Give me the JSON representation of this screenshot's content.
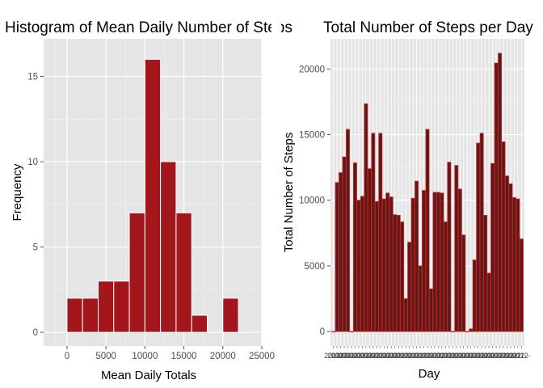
{
  "chart_data": [
    {
      "type": "bar",
      "variant": "histogram",
      "title": "Histogram of Mean Daily Number of Steps",
      "xlabel": "Mean Daily Totals",
      "ylabel": "Frequency",
      "bin_width": 2000,
      "bins": [
        {
          "start": 0,
          "end": 2000,
          "count": 2
        },
        {
          "start": 2000,
          "end": 4000,
          "count": 2
        },
        {
          "start": 4000,
          "end": 6000,
          "count": 3
        },
        {
          "start": 6000,
          "end": 8000,
          "count": 3
        },
        {
          "start": 8000,
          "end": 10000,
          "count": 7
        },
        {
          "start": 10000,
          "end": 12000,
          "count": 16
        },
        {
          "start": 12000,
          "end": 14000,
          "count": 10
        },
        {
          "start": 14000,
          "end": 16000,
          "count": 7
        },
        {
          "start": 16000,
          "end": 18000,
          "count": 1
        },
        {
          "start": 18000,
          "end": 20000,
          "count": 0
        },
        {
          "start": 20000,
          "end": 22000,
          "count": 2
        }
      ],
      "xlim": [
        -3000,
        25000
      ],
      "ylim": [
        -0.8,
        17.2
      ],
      "x_ticks": [
        0,
        5000,
        10000,
        15000,
        20000,
        25000
      ],
      "x_tick_labels": [
        "0",
        "5000",
        "10000",
        "15000",
        "20000",
        "25000"
      ],
      "y_ticks": [
        0,
        5,
        10,
        15
      ],
      "y_tick_labels": [
        "0",
        "5",
        "10",
        "15"
      ],
      "fill_color": "#a3161b",
      "edge_color": "#ffffff",
      "panel_color": "#e5e5e5",
      "grid": true
    },
    {
      "type": "bar",
      "title": "Total Number of Steps per Day",
      "xlabel": "Day",
      "ylabel": "Total Number of Steps",
      "values": [
        0,
        11350,
        12100,
        13300,
        15400,
        0,
        12850,
        10000,
        10300,
        17350,
        12400,
        15100,
        9900,
        15100,
        10100,
        10550,
        10250,
        8900,
        8850,
        8350,
        2500,
        6800,
        10150,
        11450,
        5000,
        10750,
        15400,
        3250,
        10600,
        10600,
        10550,
        8350,
        12900,
        0,
        12650,
        10850,
        7350,
        0,
        200,
        5450,
        14350,
        15100,
        8850,
        4450,
        12800,
        20450,
        21200,
        14450,
        11850,
        11250,
        10200,
        10100,
        7050
      ],
      "ylim": [
        -1100,
        22300
      ],
      "y_ticks": [
        0,
        5000,
        10000,
        15000,
        20000
      ],
      "y_tick_labels": [
        "0",
        "5000",
        "10000",
        "15000",
        "20000"
      ],
      "x_tick_label": "2012-",
      "fill_color": "#5a1a1a",
      "edge_color": "#cc1f1f",
      "panel_color": "#e5e5e5",
      "grid": true
    }
  ]
}
